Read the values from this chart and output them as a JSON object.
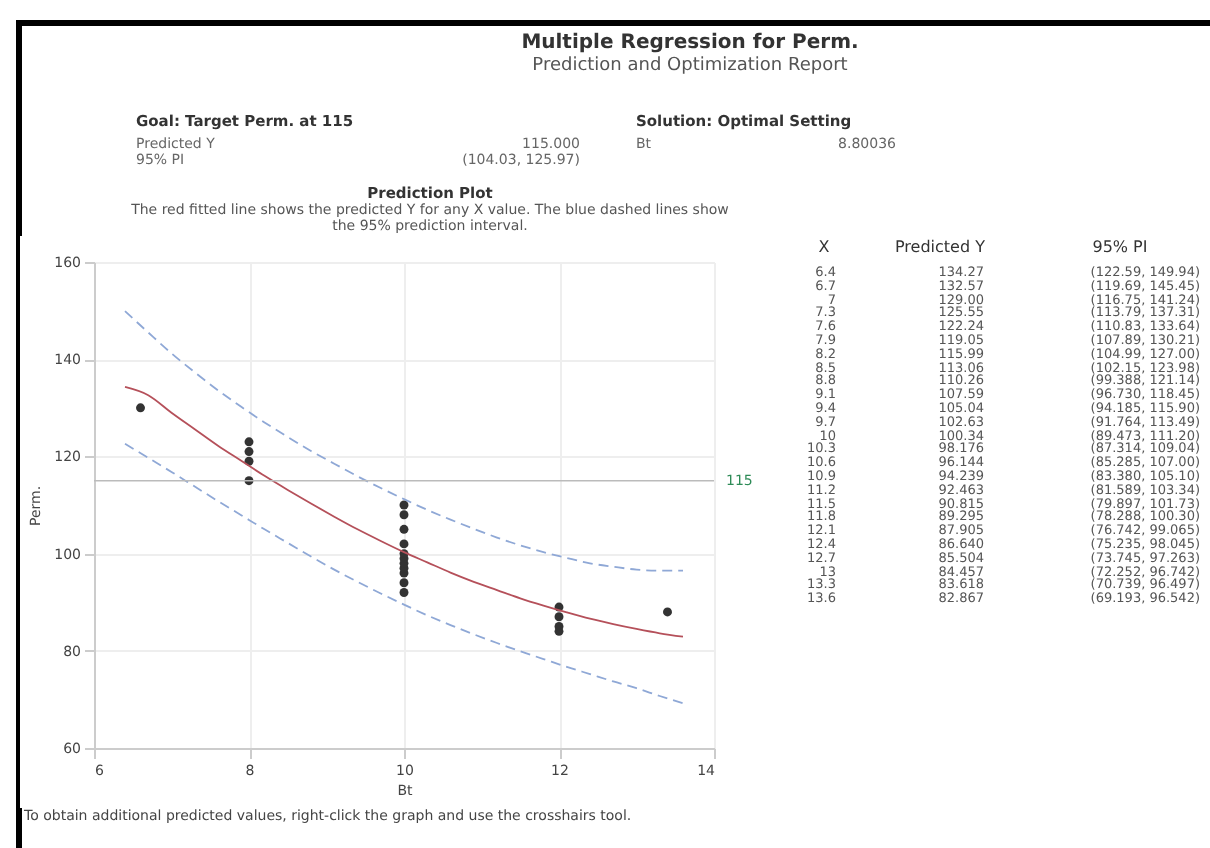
{
  "chart_data": {
    "type": "scatter",
    "title": "Multiple Regression for Perm.",
    "subtitle": "Prediction and Optimization Report",
    "xlabel": "Bt",
    "ylabel": "Perm.",
    "annotations": [
      "Goal: Target Perm. at 115",
      "Predicted Y",
      "115.000",
      "95% PI",
      "(104.03, 125.97)",
      "Solution: Optimal Setting",
      "Bt",
      "8.80036",
      "Prediction Plot",
      "The red fitted line shows the predicted Y for any X value. The blue dashed lines show the 95% prediction interval.",
      "X",
      "Predicted Y",
      "95% PI",
      "To obtain additional predicted values, right-click the graph and use the crosshairs tool.",
      "6.4",
      "134.27",
      "(122.59, 149.94)",
      "6.7",
      "132.57",
      "(119.69, 145.45)",
      "7",
      "129.00",
      "(116.75, 141.24)",
      "7.3",
      "125.55",
      "(113.79, 137.31)",
      "7.6",
      "122.24",
      "(110.83, 133.64)",
      "7.9",
      "119.05",
      "(107.89, 130.21)",
      "8.2",
      "115.99",
      "(104.99, 127.00)",
      "8.5",
      "113.06",
      "(102.15, 123.98)",
      "8.8",
      "110.26",
      "(99.388, 121.14)",
      "9.1",
      "107.59",
      "(96.730, 118.45)",
      "9.4",
      "105.04",
      "(94.185, 115.90)",
      "9.7",
      "102.63",
      "(91.764, 113.49)",
      "10",
      "100.34",
      "(89.473, 111.20)",
      "10.3",
      "98.176",
      "(87.314, 109.04)",
      "10.6",
      "96.144",
      "(85.285, 107.00)",
      "10.9",
      "94.239",
      "(83.380, 105.10)",
      "11.2",
      "92.463",
      "(81.589, 103.34)",
      "11.5",
      "90.815",
      "(79.897, 101.73)",
      "11.8",
      "89.295",
      "(78.288, 100.30)",
      "12.1",
      "87.905",
      "(76.742, 99.065)",
      "12.4",
      "86.640",
      "(75.235, 98.045)",
      "12.7",
      "85.504",
      "(73.745, 97.263)",
      "13",
      "84.457",
      "(72.252, 96.742)",
      "13.3",
      "83.618",
      "(70.739, 96.497)",
      "13.6",
      "82.867",
      "(69.193, 96.542)"
    ],
    "xlim": [
      6,
      14
    ],
    "xticks": [
      6,
      8,
      10,
      12,
      14
    ],
    "ylim": [
      60,
      160
    ],
    "yticks": [
      60,
      80,
      100,
      120,
      140,
      160
    ],
    "grid": true,
    "ref_lines": [
      {
        "axis": "y",
        "value": 115,
        "label": "115",
        "color": "#bbbbbb"
      }
    ],
    "series": [
      {
        "color": "#333333",
        "marker": "circle",
        "x": [
          6.6,
          8,
          8,
          8,
          8,
          10,
          10,
          10,
          10,
          10,
          10,
          10,
          10,
          10,
          10,
          10,
          12,
          12,
          12,
          12,
          13.4
        ],
        "values": [
          130,
          115,
          119,
          121,
          123,
          92,
          94,
          96,
          97,
          98,
          99,
          100,
          102,
          105,
          108,
          110,
          84,
          85,
          87,
          89,
          88
        ]
      },
      {
        "type": "line",
        "color": "#b5505a",
        "line_style": "solid",
        "x": [
          6.4,
          6.7,
          7,
          7.3,
          7.6,
          7.9,
          8.2,
          8.5,
          8.8,
          9.1,
          9.4,
          9.7,
          10,
          10.3,
          10.6,
          10.9,
          11.2,
          11.5,
          11.8,
          12.1,
          12.4,
          12.7,
          13,
          13.3,
          13.6
        ],
        "values": [
          134.3,
          132.6,
          129.0,
          125.6,
          122.2,
          119.1,
          116.0,
          113.1,
          110.3,
          107.6,
          105.0,
          102.6,
          100.3,
          98.2,
          96.1,
          94.2,
          92.5,
          90.8,
          89.3,
          87.9,
          86.6,
          85.5,
          84.5,
          83.6,
          82.9
        ]
      },
      {
        "type": "line",
        "color": "#8fa8d6",
        "line_style": "dashed",
        "x": [
          6.4,
          6.7,
          7,
          7.3,
          7.6,
          7.9,
          8.2,
          8.5,
          8.8,
          9.1,
          9.4,
          9.7,
          10,
          10.3,
          10.6,
          10.9,
          11.2,
          11.5,
          11.8,
          12.1,
          12.4,
          12.7,
          13,
          13.3,
          13.6
        ],
        "values": [
          122.6,
          119.7,
          116.8,
          113.8,
          110.8,
          107.9,
          105.0,
          102.2,
          99.4,
          96.7,
          94.2,
          91.8,
          89.5,
          87.3,
          85.3,
          83.4,
          81.6,
          79.9,
          78.3,
          76.7,
          75.2,
          73.7,
          72.3,
          70.7,
          69.2
        ]
      },
      {
        "type": "line",
        "color": "#8fa8d6",
        "line_style": "dashed",
        "x": [
          6.4,
          6.7,
          7,
          7.3,
          7.6,
          7.9,
          8.2,
          8.5,
          8.8,
          9.1,
          9.4,
          9.7,
          10,
          10.3,
          10.6,
          10.9,
          11.2,
          11.5,
          11.8,
          12.1,
          12.4,
          12.7,
          13,
          13.3,
          13.6
        ],
        "values": [
          149.9,
          145.5,
          141.2,
          137.3,
          133.6,
          130.2,
          127.0,
          124.0,
          121.1,
          118.5,
          115.9,
          113.5,
          111.2,
          109.0,
          107.0,
          105.1,
          103.3,
          101.7,
          100.3,
          99.1,
          98.0,
          97.3,
          96.7,
          96.5,
          96.5
        ]
      }
    ]
  }
}
